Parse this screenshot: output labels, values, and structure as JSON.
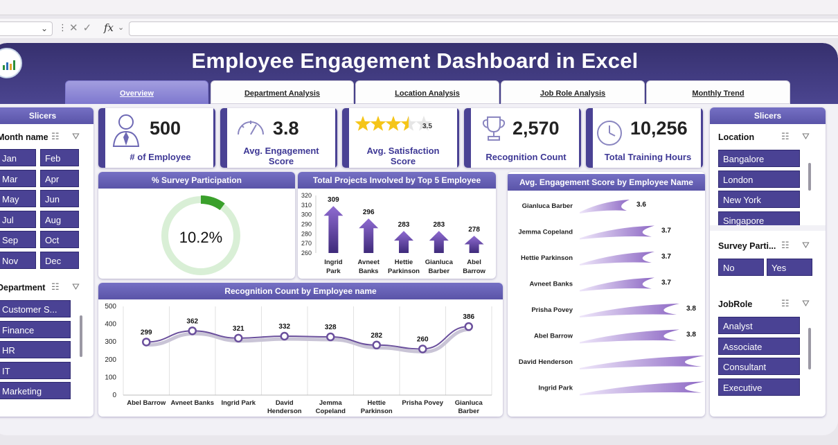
{
  "formula_bar": {
    "fx_label": "fx",
    "cancel_glyph": "✕",
    "confirm_glyph": "✓"
  },
  "dashboard_title": "Employee Engagement Dashboard in Excel",
  "tabs": [
    "Overview",
    "Department Analysis",
    "Location Analysis",
    "Job Role Analysis",
    "Monthly Trend"
  ],
  "colors": {
    "accent": "#4a4294",
    "header": "#3b3577",
    "gauge": "#3aa02b",
    "gauge_track": "#d9efd6",
    "star": "#f5c518"
  },
  "left_slicers": {
    "title": "Slicers",
    "month": {
      "label": "Month name",
      "items": [
        "Jan",
        "Feb",
        "Mar",
        "Apr",
        "May",
        "Jun",
        "Jul",
        "Aug",
        "Sep",
        "Oct",
        "Nov",
        "Dec"
      ]
    },
    "department": {
      "label": "Department",
      "items": [
        "Customer S...",
        "Finance",
        "HR",
        "IT",
        "Marketing"
      ]
    }
  },
  "kpis": {
    "employees": {
      "value": "500",
      "label": "# of Employee",
      "icon": "employee-icon"
    },
    "engagement": {
      "value": "3.8",
      "label": "Avg. Engagement Score",
      "icon": "gauge-icon"
    },
    "satisfaction": {
      "stars_value": "3.5",
      "rating": 3.5,
      "max": 5,
      "label": "Avg. Satisfaction Score",
      "icon": "star-rating-icon"
    },
    "recognition": {
      "value": "2,570",
      "label": "Recognition Count",
      "icon": "trophy-icon"
    },
    "training": {
      "value": "10,256",
      "label": "Total Training Hours",
      "icon": "clock-icon"
    }
  },
  "survey_panel": {
    "title": "% Survey Participation",
    "value_text": "10.2%"
  },
  "projects_panel": {
    "title": "Total Projects Involved by Top 5 Employee"
  },
  "recognition_panel": {
    "title": "Recognition Count by Employee name"
  },
  "engagement_panel": {
    "title": "Avg. Engagement Score by Employee Name"
  },
  "right_slicers": {
    "title": "Slicers",
    "location": {
      "label": "Location",
      "items": [
        "Bangalore",
        "London",
        "New York",
        "Singapore"
      ]
    },
    "survey": {
      "label": "Survey Parti...",
      "items": [
        "No",
        "Yes"
      ]
    },
    "jobrole": {
      "label": "JobRole",
      "items": [
        "Analyst",
        "Associate",
        "Consultant",
        "Executive"
      ]
    }
  },
  "chart_data": [
    {
      "type": "gauge",
      "title": "% Survey Participation",
      "value": 10.2,
      "max": 100
    },
    {
      "type": "bar",
      "title": "Total Projects Involved by Top 5 Employee",
      "categories": [
        "Ingrid Park",
        "Avneet Banks",
        "Hettie Parkinson",
        "Gianluca Barber",
        "Abel Barrow"
      ],
      "values": [
        309,
        296,
        283,
        283,
        278
      ],
      "ylim": [
        260,
        320
      ],
      "yticks": [
        260,
        270,
        280,
        290,
        300,
        310,
        320
      ],
      "grid": false
    },
    {
      "type": "line",
      "title": "Recognition Count by Employee name",
      "categories": [
        "Abel Barrow",
        "Avneet Banks",
        "Ingrid Park",
        "David Henderson",
        "Jemma Copeland",
        "Hettie Parkinson",
        "Prisha Povey",
        "Gianluca Barber"
      ],
      "values": [
        299,
        362,
        321,
        332,
        328,
        282,
        260,
        386
      ],
      "ylim": [
        0,
        500
      ],
      "yticks": [
        0,
        100,
        200,
        300,
        400,
        500
      ],
      "grid": true
    },
    {
      "type": "bar",
      "orientation": "horizontal",
      "title": "Avg. Engagement Score by Employee Name",
      "categories": [
        "Gianluca Barber",
        "Jemma Copeland",
        "Hettie Parkinson",
        "Avneet Banks",
        "Prisha Povey",
        "Abel Barrow",
        "David Henderson",
        "Ingrid Park"
      ],
      "values": [
        3.6,
        3.7,
        3.7,
        3.7,
        3.8,
        3.8,
        3.9,
        3.9
      ]
    }
  ]
}
